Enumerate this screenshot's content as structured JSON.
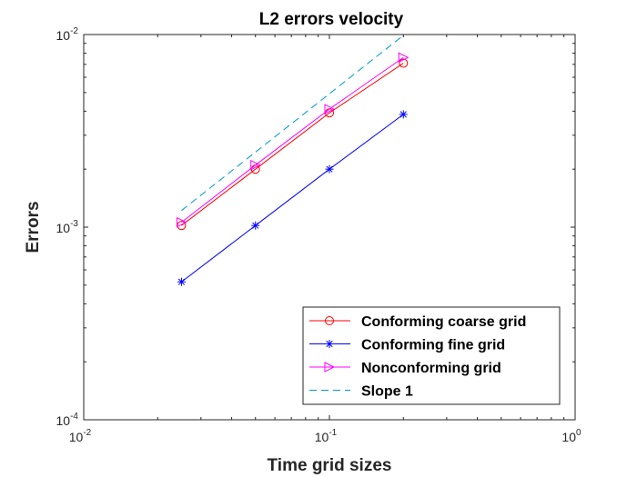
{
  "chart_data": {
    "type": "line",
    "title": "L2 errors velocity",
    "xlabel": "Time grid sizes",
    "ylabel": "Errors",
    "xscale": "log",
    "yscale": "log",
    "xlim": [
      0.01,
      1
    ],
    "ylim": [
      0.0001,
      0.01
    ],
    "x_ticks": [
      {
        "base": "10",
        "exp": "-2"
      },
      {
        "base": "10",
        "exp": "-1"
      },
      {
        "base": "10",
        "exp": "0"
      }
    ],
    "y_ticks": [
      {
        "base": "10",
        "exp": "-2"
      },
      {
        "base": "10",
        "exp": "-3"
      },
      {
        "base": "10",
        "exp": "-4"
      }
    ],
    "grid": false,
    "legend_position": "bottom-right",
    "series": [
      {
        "name": "Conforming coarse grid",
        "color": "#ff0000",
        "marker": "circle",
        "linestyle": "solid",
        "x": [
          0.025,
          0.05,
          0.1,
          0.2
        ],
        "y": [
          0.00102,
          0.002,
          0.00392,
          0.0071
        ]
      },
      {
        "name": "Conforming fine grid",
        "color": "#0000ff",
        "marker": "asterisk",
        "linestyle": "solid",
        "x": [
          0.025,
          0.05,
          0.1,
          0.2
        ],
        "y": [
          0.00052,
          0.00102,
          0.002,
          0.00385
        ]
      },
      {
        "name": "Nonconforming grid",
        "color": "#ff00ff",
        "marker": "triangle-right",
        "linestyle": "solid",
        "x": [
          0.025,
          0.05,
          0.1,
          0.2
        ],
        "y": [
          0.00106,
          0.0021,
          0.0041,
          0.0076
        ]
      },
      {
        "name": "Slope 1",
        "color": "#0099cc",
        "marker": "none",
        "linestyle": "dashed",
        "x": [
          0.025,
          0.2
        ],
        "y": [
          0.00122,
          0.0099
        ]
      }
    ]
  }
}
